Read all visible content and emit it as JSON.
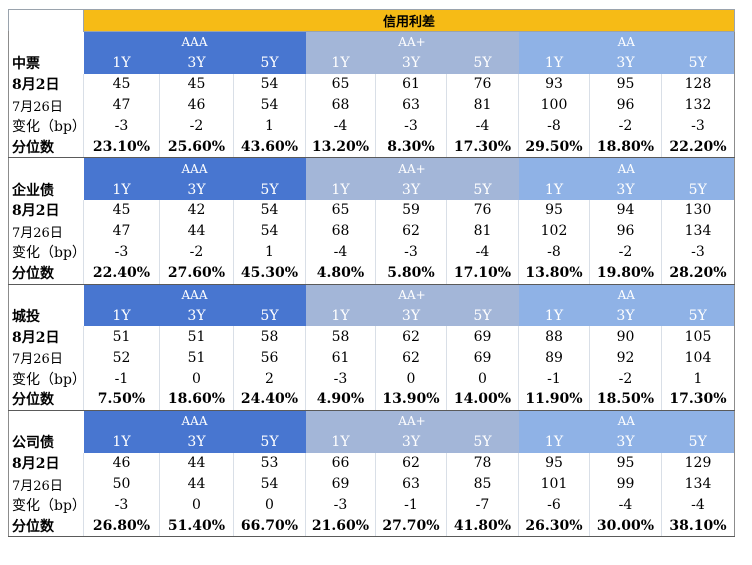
{
  "title": "信用利差",
  "groups": [
    "AAA",
    "AA+",
    "AA"
  ],
  "tenors": [
    "1Y",
    "3Y",
    "5Y",
    "1Y",
    "3Y",
    "5Y",
    "1Y",
    "3Y",
    "5Y"
  ],
  "row_labels": [
    "8月2日",
    "7月26日",
    "变化（bp）",
    "分位数"
  ],
  "sections": [
    {
      "name": "中票",
      "rows": [
        [
          "45",
          "45",
          "54",
          "65",
          "61",
          "76",
          "93",
          "95",
          "128"
        ],
        [
          "47",
          "46",
          "54",
          "68",
          "63",
          "81",
          "100",
          "96",
          "132"
        ],
        [
          "-3",
          "-2",
          "1",
          "-4",
          "-3",
          "-4",
          "-8",
          "-2",
          "-3"
        ],
        [
          "23.10%",
          "25.60%",
          "43.60%",
          "13.20%",
          "8.30%",
          "17.30%",
          "29.50%",
          "18.80%",
          "22.20%"
        ]
      ]
    },
    {
      "name": "企业债",
      "rows": [
        [
          "45",
          "42",
          "54",
          "65",
          "59",
          "76",
          "95",
          "94",
          "130"
        ],
        [
          "47",
          "44",
          "54",
          "68",
          "62",
          "81",
          "102",
          "96",
          "134"
        ],
        [
          "-3",
          "-2",
          "1",
          "-4",
          "-3",
          "-4",
          "-8",
          "-2",
          "-3"
        ],
        [
          "22.40%",
          "27.60%",
          "45.30%",
          "4.80%",
          "5.80%",
          "17.10%",
          "13.80%",
          "19.80%",
          "28.20%"
        ]
      ]
    },
    {
      "name": "城投",
      "rows": [
        [
          "51",
          "51",
          "58",
          "58",
          "62",
          "69",
          "88",
          "90",
          "105"
        ],
        [
          "52",
          "51",
          "56",
          "61",
          "62",
          "69",
          "89",
          "92",
          "104"
        ],
        [
          "-1",
          "0",
          "2",
          "-3",
          "0",
          "0",
          "-1",
          "-2",
          "1"
        ],
        [
          "7.50%",
          "18.60%",
          "24.40%",
          "4.90%",
          "13.90%",
          "14.00%",
          "11.90%",
          "18.50%",
          "17.30%"
        ]
      ]
    },
    {
      "name": "公司债",
      "rows": [
        [
          "46",
          "44",
          "53",
          "66",
          "62",
          "78",
          "95",
          "95",
          "129"
        ],
        [
          "50",
          "44",
          "54",
          "69",
          "63",
          "85",
          "101",
          "99",
          "134"
        ],
        [
          "-3",
          "0",
          "0",
          "-3",
          "-1",
          "-7",
          "-6",
          "-4",
          "-4"
        ],
        [
          "26.80%",
          "51.40%",
          "66.70%",
          "21.60%",
          "27.70%",
          "41.80%",
          "26.30%",
          "30.00%",
          "38.10%"
        ]
      ]
    }
  ],
  "colors": {
    "title_bg": "#f6bb16",
    "aaa_bg": "#4876d0",
    "aa_plus_bg": "#a3b6d8",
    "aa_bg": "#8fb2e6",
    "header_text": "#ffffff"
  }
}
